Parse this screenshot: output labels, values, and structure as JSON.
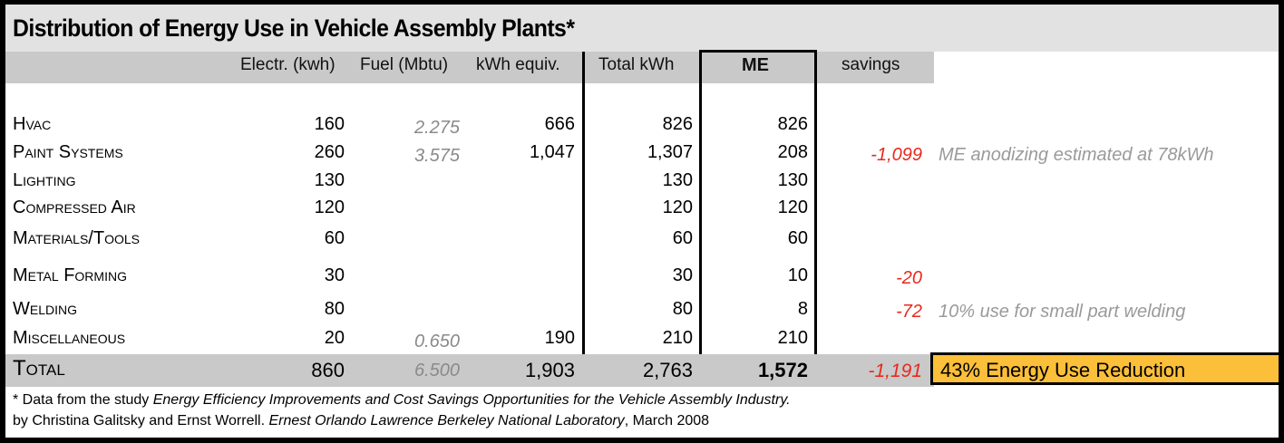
{
  "title": "Distribution of Energy Use in Vehicle Assembly Plants*",
  "headers": {
    "electr": "Electr. (kwh)",
    "fuel": "Fuel (Mbtu)",
    "kwh_equiv": "kWh equiv.",
    "total": "Total kWh",
    "me": "ME",
    "savings": "savings"
  },
  "rows": [
    {
      "label": "Hvac",
      "electr": "160",
      "fuel": "2.275",
      "kwh_equiv": "666",
      "total": "826",
      "me": "826",
      "savings": "",
      "note": ""
    },
    {
      "label": "Paint Systems",
      "electr": "260",
      "fuel": "3.575",
      "kwh_equiv": "1,047",
      "total": "1,307",
      "me": "208",
      "savings": "-1,099",
      "note": "ME anodizing estimated at 78kWh"
    },
    {
      "label": "Lighting",
      "electr": "130",
      "fuel": "",
      "kwh_equiv": "",
      "total": "130",
      "me": "130",
      "savings": "",
      "note": ""
    },
    {
      "label": "Compressed Air",
      "electr": "120",
      "fuel": "",
      "kwh_equiv": "",
      "total": "120",
      "me": "120",
      "savings": "",
      "note": ""
    },
    {
      "label": "Materials/Tools",
      "electr": "60",
      "fuel": "",
      "kwh_equiv": "",
      "total": "60",
      "me": "60",
      "savings": "",
      "note": ""
    },
    {
      "label": "Metal Forming",
      "electr": "30",
      "fuel": "",
      "kwh_equiv": "",
      "total": "30",
      "me": "10",
      "savings": "-20",
      "note": ""
    },
    {
      "label": "Welding",
      "electr": "80",
      "fuel": "",
      "kwh_equiv": "",
      "total": "80",
      "me": "8",
      "savings": "-72",
      "note": "10% use for small part welding"
    },
    {
      "label": "Miscellaneous",
      "electr": "20",
      "fuel": "0.650",
      "kwh_equiv": "190",
      "total": "210",
      "me": "210",
      "savings": "",
      "note": ""
    }
  ],
  "total": {
    "label": "Total",
    "electr": "860",
    "fuel": "6.500",
    "kwh_equiv": "1,903",
    "total": "2,763",
    "me": "1,572",
    "savings": "-1,191",
    "reduction": "43% Energy Use Reduction"
  },
  "footnote": {
    "prefix": "* Data from the study ",
    "study": "Energy Efficiency Improvements and Cost Savings Opportunities for the Vehicle Assembly Industry.",
    "authors": "by Christina Galitsky and Ernst Worrell. ",
    "lab": "Ernest Orlando Lawrence Berkeley National Laboratory",
    "date": ", March 2008"
  },
  "colors": {
    "savings": "#e8291c",
    "highlight": "#fbbf39",
    "header_bg": "#c9c9c9",
    "title_bg": "#e2e2e2"
  }
}
